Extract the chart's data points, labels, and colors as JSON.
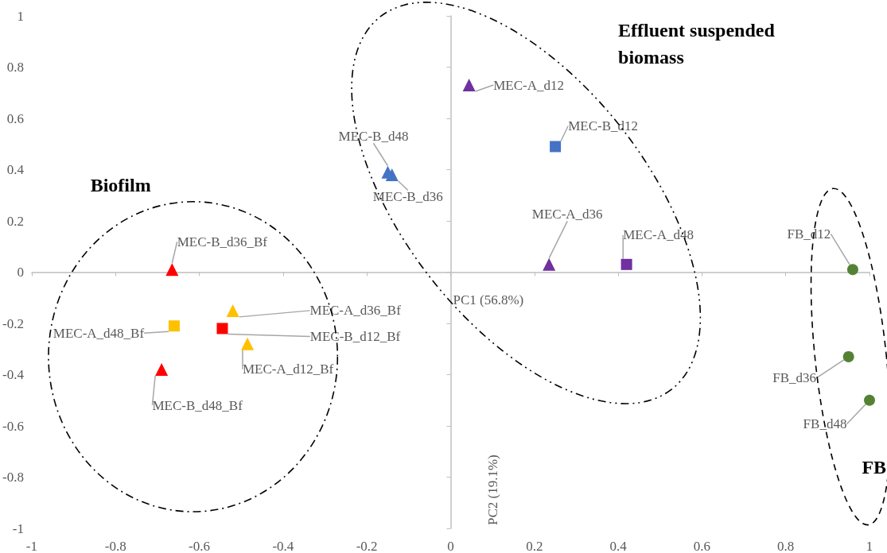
{
  "chart_data": {
    "type": "scatter",
    "xlabel": "PC1 (56.8%)",
    "ylabel": "PC2 (19.1%)",
    "xlim": [
      -1,
      1
    ],
    "xticks": [
      -1,
      -0.8,
      -0.6,
      -0.4,
      -0.2,
      0,
      0.2,
      0.4,
      0.6,
      0.8,
      1
    ],
    "ylim": [
      -1,
      1
    ],
    "yticks": [
      -1,
      -0.8,
      -0.6,
      -0.4,
      -0.2,
      0,
      0.2,
      0.4,
      0.6,
      0.8,
      1
    ],
    "annotations": [
      "Biofilm",
      "Effluent suspended biomass",
      "FB"
    ],
    "series": [
      {
        "name": "MEC-A_d12",
        "color": "#7030a0",
        "marker": "triangle",
        "x": [
          0.044
        ],
        "values": [
          0.73
        ]
      },
      {
        "name": "MEC-B_d12",
        "color": "#4472c4",
        "marker": "square",
        "x": [
          0.25
        ],
        "values": [
          0.49
        ]
      },
      {
        "name": "MEC-B_d36",
        "color": "#4472c4",
        "marker": "triangle",
        "x": [
          -0.14
        ],
        "values": [
          0.38
        ]
      },
      {
        "name": "MEC-B_d48",
        "color": "#4472c4",
        "marker": "triangle",
        "x": [
          -0.15
        ],
        "values": [
          0.39
        ]
      },
      {
        "name": "MEC-A_d36",
        "color": "#7030a0",
        "marker": "triangle",
        "x": [
          0.235
        ],
        "values": [
          0.03
        ]
      },
      {
        "name": "MEC-A_d48",
        "color": "#7030a0",
        "marker": "square",
        "x": [
          0.42
        ],
        "values": [
          0.03
        ]
      },
      {
        "name": "FB_d12",
        "color": "#548235",
        "marker": "circle",
        "x": [
          0.96
        ],
        "values": [
          0.01
        ]
      },
      {
        "name": "FB_d36",
        "color": "#548235",
        "marker": "circle",
        "x": [
          0.95
        ],
        "values": [
          -0.33
        ]
      },
      {
        "name": "FB_d48",
        "color": "#548235",
        "marker": "circle",
        "x": [
          1.0
        ],
        "values": [
          -0.5
        ]
      },
      {
        "name": "MEC-B_d36_Bf",
        "color": "#ff0000",
        "marker": "triangle",
        "x": [
          -0.665
        ],
        "values": [
          0.01
        ]
      },
      {
        "name": "MEC-A_d36_Bf",
        "color": "#ffc000",
        "marker": "triangle",
        "x": [
          -0.52
        ],
        "values": [
          -0.15
        ]
      },
      {
        "name": "MEC-A_d48_Bf",
        "color": "#ffc000",
        "marker": "square",
        "x": [
          -0.66
        ],
        "values": [
          -0.21
        ]
      },
      {
        "name": "MEC-B_d12_Bf",
        "color": "#ff0000",
        "marker": "square",
        "x": [
          -0.545
        ],
        "values": [
          -0.22
        ]
      },
      {
        "name": "MEC-A_d12_Bf",
        "color": "#ffc000",
        "marker": "triangle",
        "x": [
          -0.485
        ],
        "values": [
          -0.28
        ]
      },
      {
        "name": "MEC-B_d48_Bf",
        "color": "#ff0000",
        "marker": "triangle",
        "x": [
          -0.69
        ],
        "values": [
          -0.38
        ]
      }
    ]
  }
}
